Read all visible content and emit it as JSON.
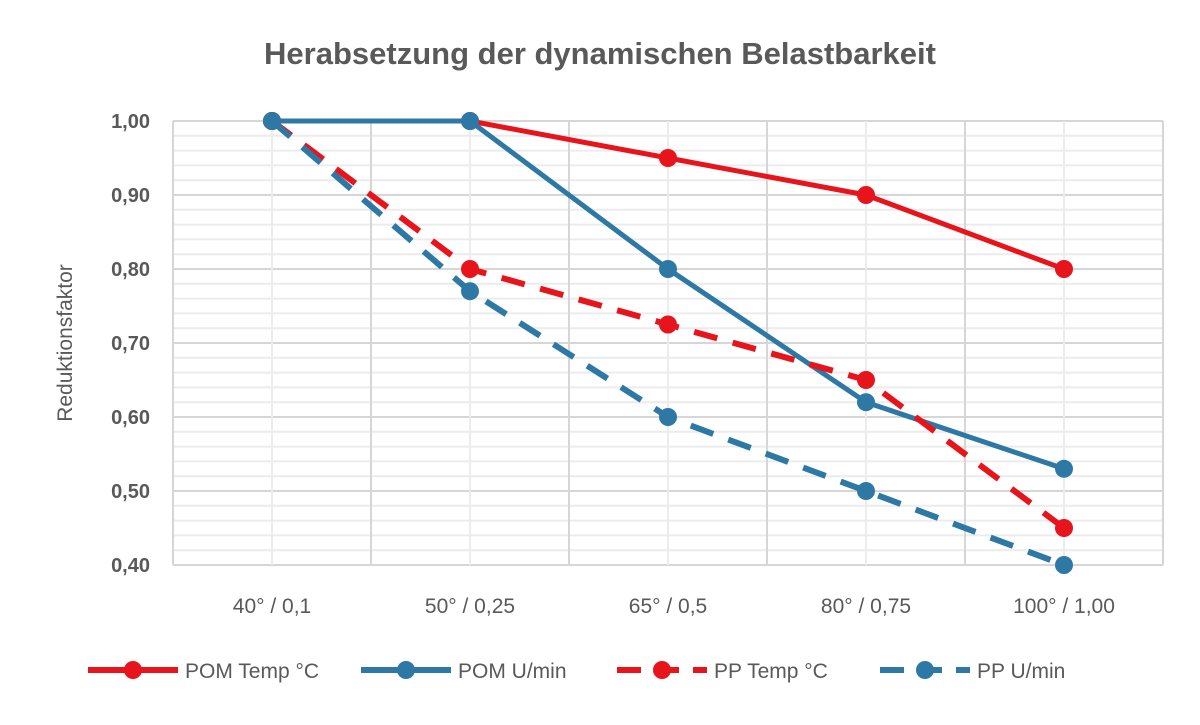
{
  "chart_data": {
    "type": "line",
    "title": "Herabsetzung der dynamischen Belastbarkeit",
    "xlabel": "",
    "ylabel": "Reduktionsfaktor",
    "categories": [
      "40° / 0,1",
      "50° / 0,25",
      "65° / 0,5",
      "80° / 0,75",
      "100° / 1,00"
    ],
    "ylim": [
      0.4,
      1.0
    ],
    "yticks": [
      "0,40",
      "0,50",
      "0,60",
      "0,70",
      "0,80",
      "0,90",
      "1,00"
    ],
    "grid": true,
    "legend_position": "bottom",
    "series": [
      {
        "name": "POM Temp °C",
        "color": "#e8141b",
        "dashed": false,
        "values": [
          1.0,
          1.0,
          0.95,
          0.9,
          0.8
        ]
      },
      {
        "name": "POM U/min",
        "color": "#2e78a6",
        "dashed": false,
        "values": [
          1.0,
          1.0,
          0.8,
          0.62,
          0.53
        ]
      },
      {
        "name": "PP Temp °C",
        "color": "#e8141b",
        "dashed": true,
        "values": [
          1.0,
          0.8,
          0.725,
          0.65,
          0.45
        ]
      },
      {
        "name": "PP U/min",
        "color": "#2e78a6",
        "dashed": true,
        "values": [
          1.0,
          0.77,
          0.6,
          0.5,
          0.4
        ]
      }
    ]
  }
}
